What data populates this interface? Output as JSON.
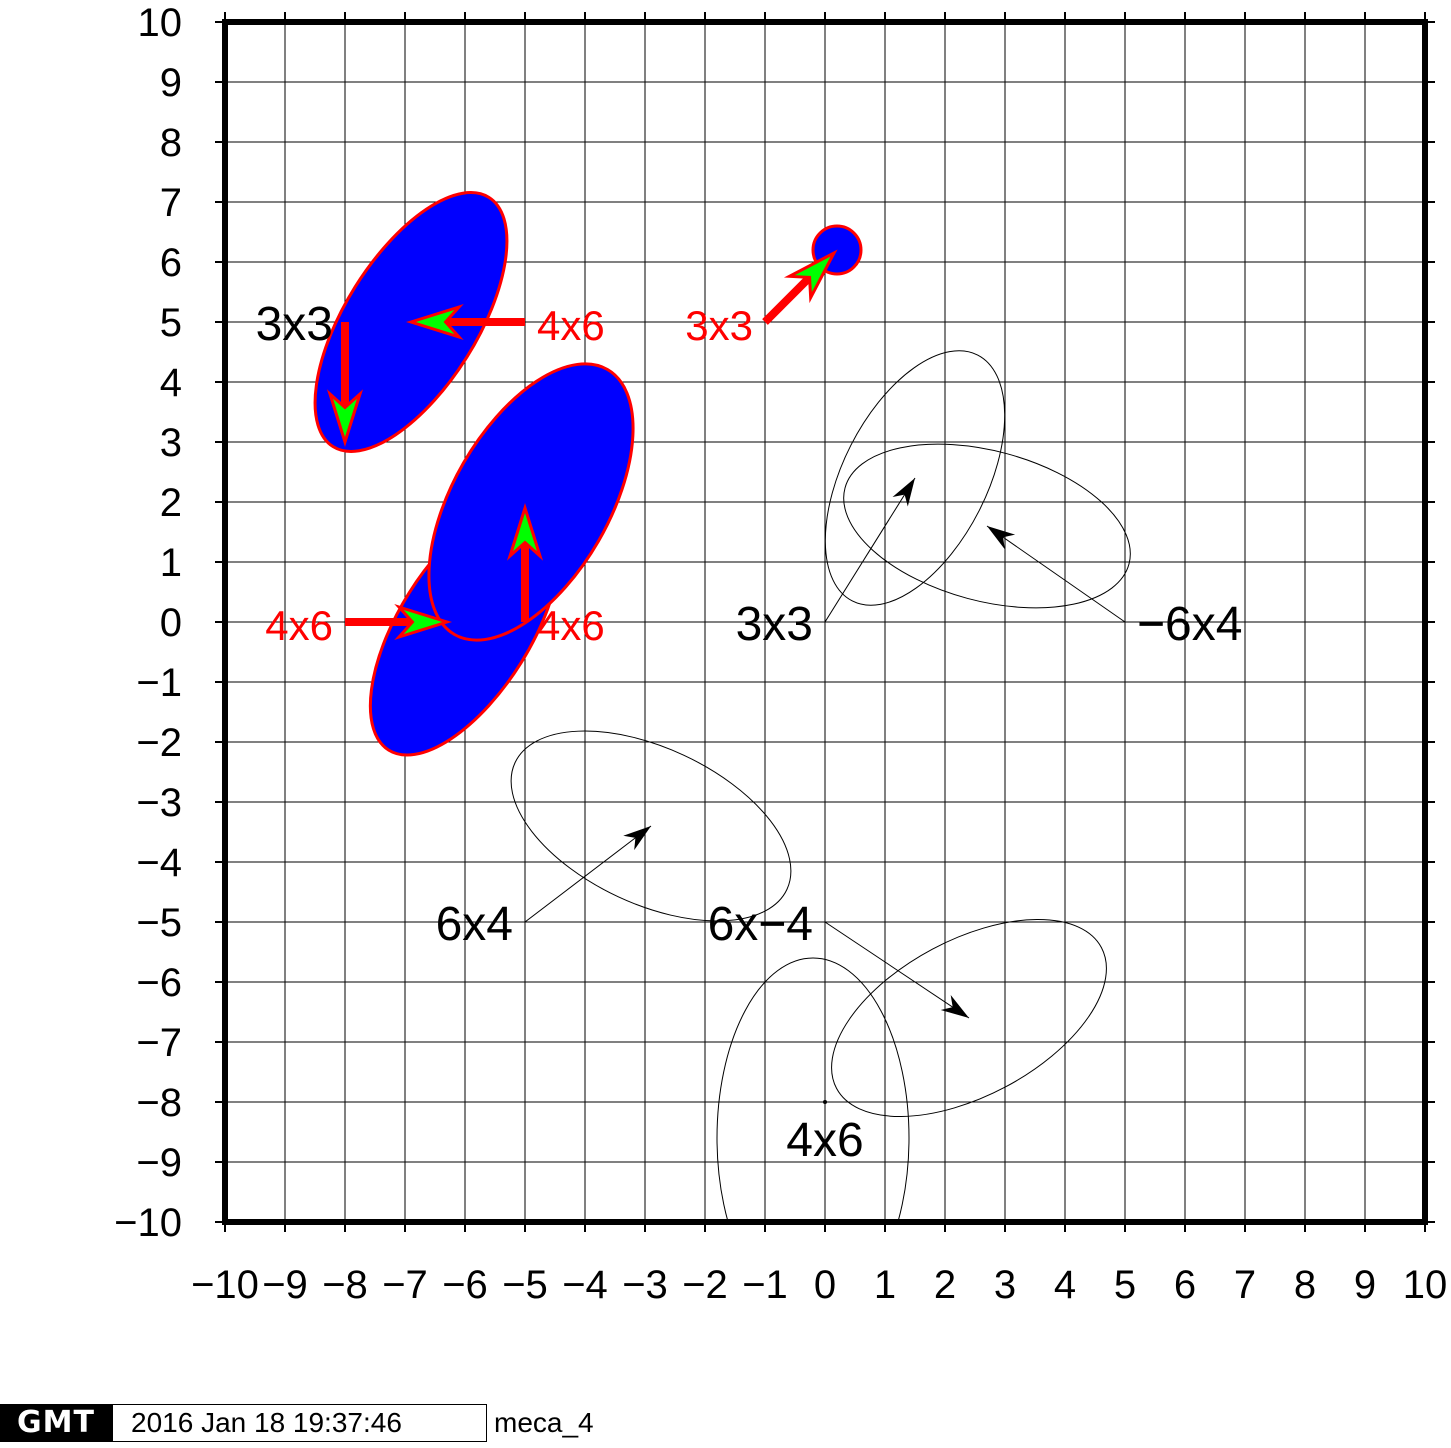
{
  "chart_data": {
    "type": "scatter",
    "title": "",
    "xlabel": "",
    "ylabel": "",
    "xlim": [
      -10,
      10
    ],
    "ylim": [
      -10,
      10
    ],
    "grid": true,
    "xticks": [
      "−10",
      "−9",
      "−8",
      "−7",
      "−6",
      "−5",
      "−4",
      "−3",
      "−2",
      "−1",
      "0",
      "1",
      "2",
      "3",
      "4",
      "5",
      "6",
      "7",
      "8",
      "9",
      "10"
    ],
    "yticks": [
      "10",
      "9",
      "8",
      "7",
      "6",
      "5",
      "4",
      "3",
      "2",
      "1",
      "0",
      "−1",
      "−2",
      "−3",
      "−4",
      "−5",
      "−6",
      "−7",
      "−8",
      "−9",
      "−10"
    ],
    "series": [
      {
        "name": "",
        "style": "outline",
        "colors": {
          "ellipse": "#000000",
          "arrow": "#000000",
          "label": "#000000"
        },
        "vectors": [
          {
            "x0": 0,
            "y0": 0,
            "x1": 1.5,
            "y1": 2.4,
            "label": "3x3",
            "ellipse": {
              "cx": 1.5,
              "cy": 2.4,
              "rx": 2.3,
              "ry": 1.2,
              "angle": 63
            }
          },
          {
            "x0": 5,
            "y0": 0,
            "x1": 2.7,
            "y1": 1.6,
            "label": "−6x4",
            "ellipse": {
              "cx": 2.7,
              "cy": 1.6,
              "rx": 2.45,
              "ry": 1.25,
              "angle": -15
            }
          },
          {
            "x0": -5,
            "y0": -5,
            "x1": -2.9,
            "y1": -3.4,
            "label": "6x4",
            "ellipse": {
              "cx": -2.9,
              "cy": -3.4,
              "rx": 2.5,
              "ry": 1.3,
              "angle": -25
            }
          },
          {
            "x0": 0,
            "y0": -5,
            "x1": 2.4,
            "y1": -6.6,
            "label": "6x−4",
            "ellipse": {
              "cx": 2.4,
              "cy": -6.6,
              "rx": 2.5,
              "ry": 1.3,
              "angle": 28
            }
          },
          {
            "x0": 0,
            "y0": -8,
            "x1": 0,
            "y1": -8,
            "label": "4x6",
            "ellipse": {
              "cx": -0.2,
              "cy": -8.6,
              "rx": 1.6,
              "ry": 3.0,
              "angle": 0
            }
          },
          {
            "x0": -8,
            "y0": 5,
            "x1": -6.9,
            "y1": 6.2,
            "label": "3x3",
            "ellipse": null
          }
        ]
      },
      {
        "name": "",
        "style": "filled",
        "colors": {
          "ellipse_fill": "#0000ff",
          "ellipse_edge": "#ff0000",
          "arrow_fill": "#00ff00",
          "arrow_edge": "#ff0000",
          "label": "#ff0000"
        },
        "vectors": [
          {
            "x0": -5,
            "y0": 5,
            "x1": -6.9,
            "y1": 5,
            "label": "4x6",
            "ellipse": {
              "cx": -6.9,
              "cy": 5.0,
              "rx": 2.45,
              "ry": 1.1,
              "angle": 58
            }
          },
          {
            "x0": -8,
            "y0": 5,
            "x1": -8,
            "y1": 3,
            "label": "",
            "ellipse": null
          },
          {
            "x0": -1,
            "y0": 5,
            "x1": 0.15,
            "y1": 6.15,
            "label": "3x3",
            "ellipse": {
              "cx": 0.2,
              "cy": 6.2,
              "rx": 0.4,
              "ry": 0.4,
              "angle": 0
            }
          },
          {
            "x0": -8,
            "y0": 0,
            "x1": -6.3,
            "y1": 0,
            "label": "4x6",
            "ellipse": {
              "cx": -6.0,
              "cy": -0.1,
              "rx": 2.4,
              "ry": 1.1,
              "angle": 58
            }
          },
          {
            "x0": -5,
            "y0": 0,
            "x1": -5,
            "y1": 1.9,
            "label": "4x6",
            "ellipse": {
              "cx": -4.9,
              "cy": 2.0,
              "rx": 2.55,
              "ry": 1.3,
              "angle": 60
            }
          }
        ]
      }
    ]
  },
  "footer": {
    "logo_text": "GMT",
    "timestamp": "2016 Jan 18 19:37:46",
    "script_name": "meca_4"
  }
}
